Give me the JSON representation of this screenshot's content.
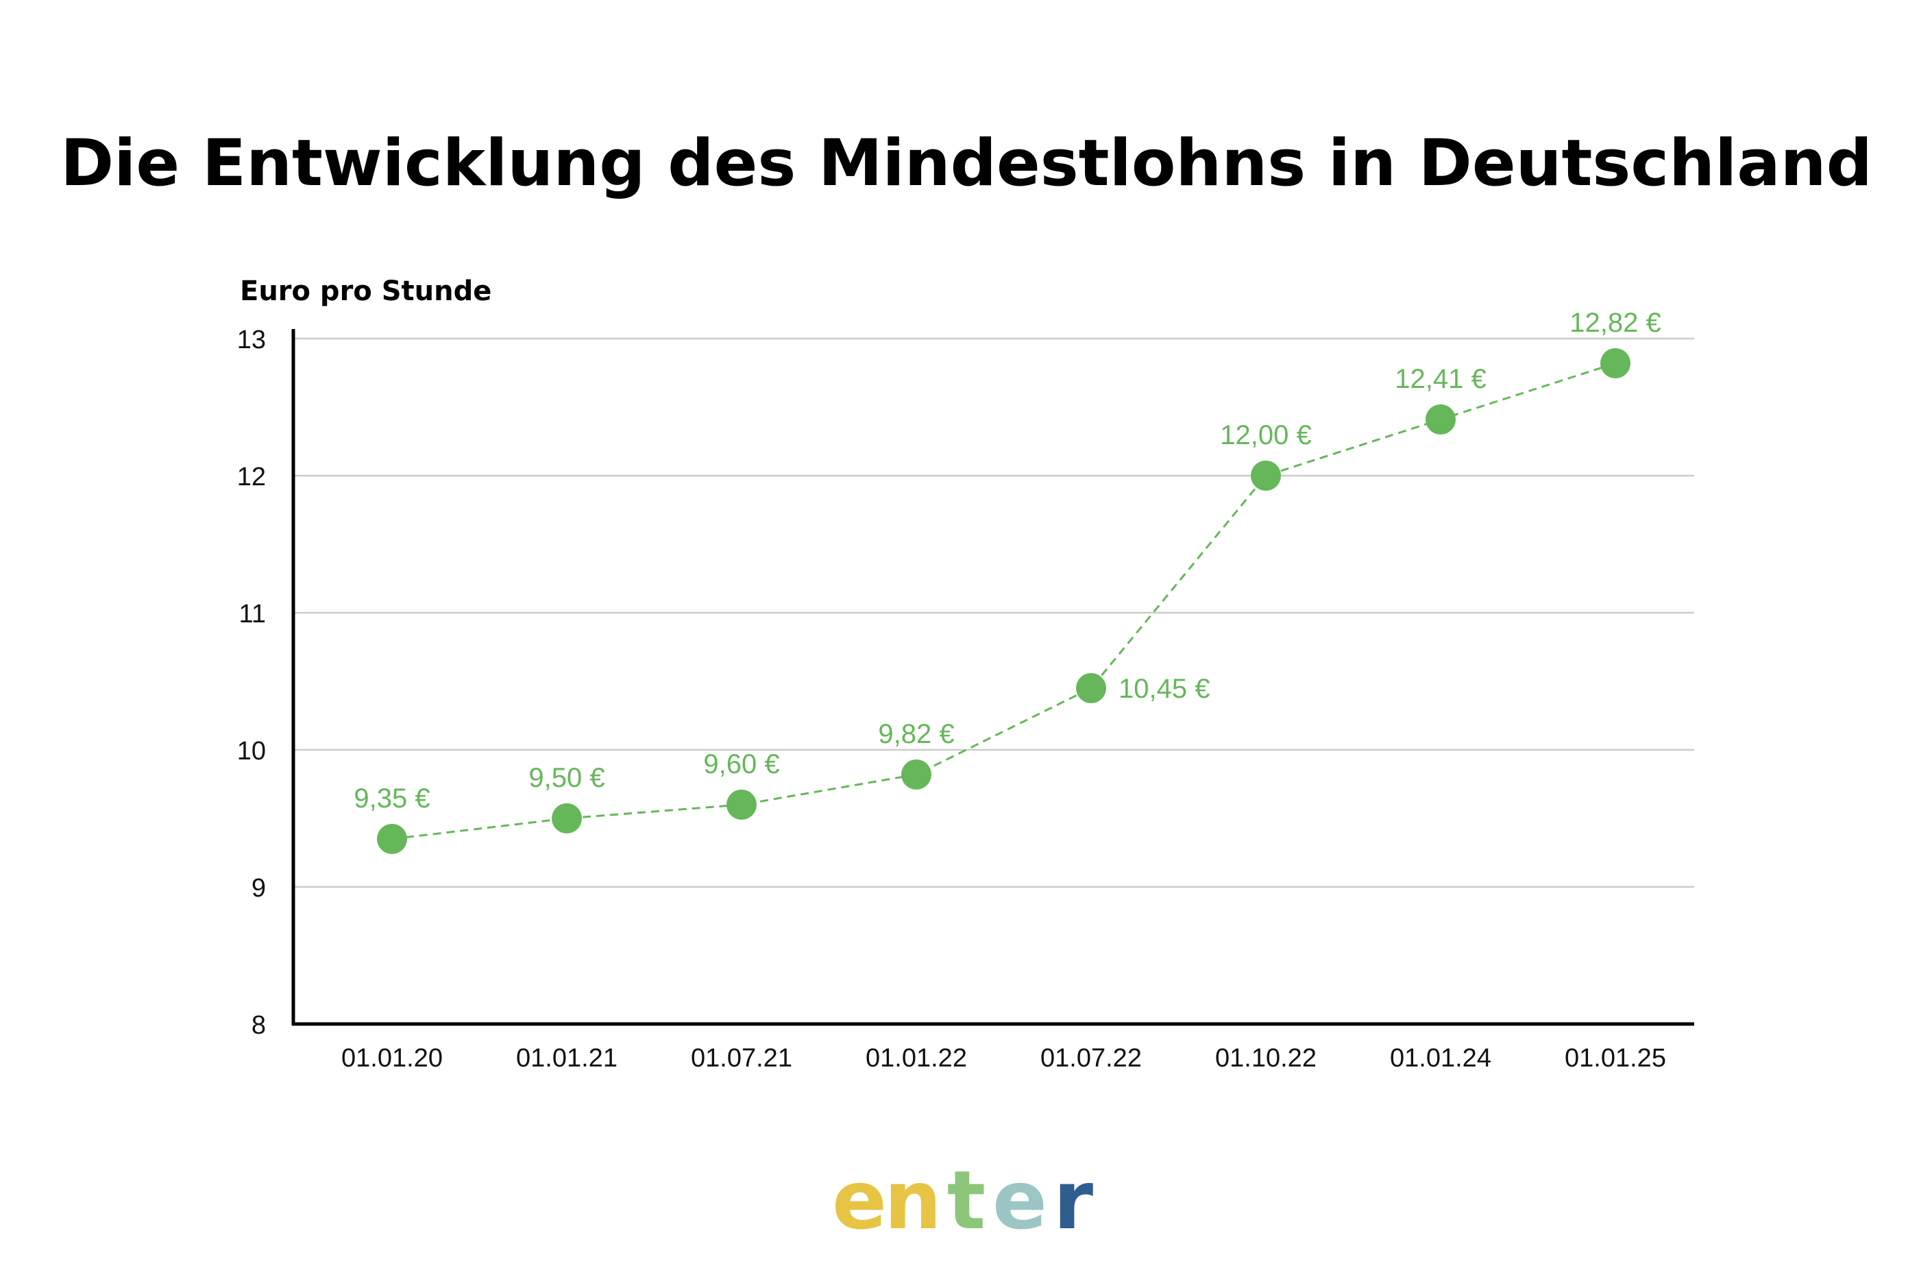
{
  "chart_data": {
    "type": "line",
    "title": "Die Entwicklung des Mindestlohns in Deutschland",
    "ylabel": "Euro pro Stunde",
    "xlabel": "",
    "ylim": [
      8,
      13
    ],
    "yticks": [
      8,
      9,
      10,
      11,
      12,
      13
    ],
    "grid": true,
    "categories": [
      "01.01.20",
      "01.01.21",
      "01.07.21",
      "01.01.22",
      "01.07.22",
      "01.10.22",
      "01.01.24",
      "01.01.25"
    ],
    "series": [
      {
        "values": [
          9.35,
          9.5,
          9.6,
          9.82,
          10.45,
          12.0,
          12.41,
          12.82
        ],
        "labels": [
          "9,35 €",
          "9,50 €",
          "9,60 €",
          "9,82 €",
          "10,45 €",
          "12,00 €",
          "12,41 €",
          "12,82 €"
        ],
        "color": "#66b75a",
        "line_style": "dashed"
      }
    ]
  },
  "brand": {
    "logo_text": "enter",
    "logo_colors": [
      "#e7c444",
      "#8cc67a",
      "#9cc6c6",
      "#2f5d8f"
    ]
  }
}
